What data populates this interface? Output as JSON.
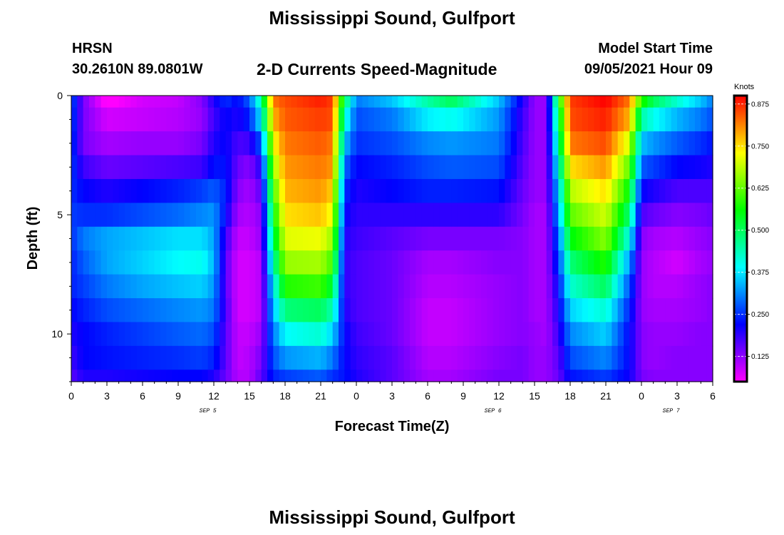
{
  "header": {
    "title": "Mississippi Sound, Gulfport",
    "footer_title": "Mississippi Sound, Gulfport",
    "station_id": "HRSN",
    "station_coords": "30.2610N  89.0801W",
    "product": "2-D Currents Speed-Magnitude",
    "model_start_label": "Model Start Time",
    "model_start_value": "09/05/2021 Hour 09"
  },
  "chart_data": {
    "type": "heatmap",
    "title": "2-D Currents Speed-Magnitude",
    "xlabel": "Forecast Time(Z)",
    "ylabel": "Depth (ft)",
    "x_hours": [
      0,
      54
    ],
    "xtick_hours": [
      0,
      3,
      6,
      9,
      12,
      15,
      18,
      21,
      24,
      27,
      30,
      33,
      36,
      39,
      42,
      45,
      48,
      51,
      54
    ],
    "xtick_labels": [
      "0",
      "3",
      "6",
      "9",
      "12",
      "15",
      "18",
      "21",
      "0",
      "3",
      "6",
      "9",
      "12",
      "15",
      "18",
      "21",
      "0",
      "3",
      "6"
    ],
    "date_labels": [
      {
        "hour": 11.5,
        "text": "SEP 5"
      },
      {
        "hour": 35.5,
        "text": "SEP 6"
      },
      {
        "hour": 50.5,
        "text": "SEP 7"
      }
    ],
    "ylim": [
      0,
      12
    ],
    "yticks": [
      0,
      5,
      10
    ],
    "ytick_labels": [
      "0",
      "5",
      "10"
    ],
    "depths": [
      0,
      1,
      2,
      3,
      4,
      5,
      6,
      7,
      8,
      9,
      10,
      11,
      12
    ],
    "colorbar": {
      "label": "Knots",
      "min": 0.05,
      "max": 0.9,
      "ticks": [
        0.125,
        0.25,
        0.375,
        0.5,
        0.625,
        0.75,
        0.875
      ],
      "tick_labels": [
        "0.125",
        "0.250",
        "0.375",
        "0.500",
        "0.625",
        "0.750",
        "0.875"
      ],
      "colors": [
        "#ff00ff",
        "#7f00ff",
        "#0000ff",
        "#0080ff",
        "#00ffff",
        "#00ff80",
        "#00ff00",
        "#80ff00",
        "#ffff00",
        "#ff8000",
        "#ff0000"
      ]
    },
    "profiles": [
      {
        "hour": 0,
        "values": [
          0.28,
          0.27,
          0.26,
          0.26,
          0.25,
          0.26,
          0.25,
          0.24,
          0.24,
          0.22,
          0.2,
          0.18,
          0.16
        ]
      },
      {
        "hour": 1,
        "values": [
          0.14,
          0.14,
          0.14,
          0.18,
          0.22,
          0.25,
          0.3,
          0.28,
          0.26,
          0.24,
          0.22,
          0.22,
          0.2
        ]
      },
      {
        "hour": 3,
        "values": [
          0.04,
          0.08,
          0.11,
          0.15,
          0.2,
          0.25,
          0.33,
          0.33,
          0.3,
          0.27,
          0.24,
          0.23,
          0.2
        ]
      },
      {
        "hour": 6,
        "values": [
          0.08,
          0.09,
          0.12,
          0.16,
          0.22,
          0.27,
          0.35,
          0.36,
          0.33,
          0.29,
          0.26,
          0.24,
          0.21
        ]
      },
      {
        "hour": 9,
        "values": [
          0.09,
          0.1,
          0.12,
          0.17,
          0.24,
          0.29,
          0.37,
          0.39,
          0.35,
          0.31,
          0.28,
          0.25,
          0.22
        ]
      },
      {
        "hour": 11,
        "values": [
          0.13,
          0.12,
          0.14,
          0.18,
          0.26,
          0.31,
          0.37,
          0.4,
          0.36,
          0.32,
          0.29,
          0.26,
          0.22
        ]
      },
      {
        "hour": 12,
        "values": [
          0.2,
          0.18,
          0.2,
          0.23,
          0.28,
          0.32,
          0.33,
          0.34,
          0.32,
          0.3,
          0.27,
          0.24,
          0.2
        ]
      },
      {
        "hour": 13,
        "values": [
          0.25,
          0.22,
          0.22,
          0.23,
          0.24,
          0.22,
          0.18,
          0.16,
          0.16,
          0.17,
          0.16,
          0.16,
          0.15
        ]
      },
      {
        "hour": 14,
        "values": [
          0.22,
          0.2,
          0.17,
          0.15,
          0.13,
          0.11,
          0.09,
          0.08,
          0.08,
          0.08,
          0.09,
          0.09,
          0.1
        ]
      },
      {
        "hour": 15,
        "values": [
          0.28,
          0.24,
          0.18,
          0.13,
          0.11,
          0.1,
          0.09,
          0.08,
          0.08,
          0.08,
          0.09,
          0.1,
          0.1
        ]
      },
      {
        "hour": 16,
        "values": [
          0.45,
          0.38,
          0.28,
          0.2,
          0.16,
          0.13,
          0.12,
          0.1,
          0.1,
          0.1,
          0.12,
          0.14,
          0.16
        ]
      },
      {
        "hour": 17,
        "values": [
          0.82,
          0.78,
          0.72,
          0.66,
          0.6,
          0.55,
          0.5,
          0.44,
          0.38,
          0.34,
          0.3,
          0.27,
          0.24
        ]
      },
      {
        "hour": 18,
        "values": [
          0.85,
          0.84,
          0.82,
          0.8,
          0.78,
          0.75,
          0.71,
          0.66,
          0.58,
          0.48,
          0.39,
          0.32,
          0.26
        ]
      },
      {
        "hour": 21,
        "values": [
          0.88,
          0.86,
          0.84,
          0.82,
          0.8,
          0.77,
          0.72,
          0.67,
          0.6,
          0.5,
          0.42,
          0.34,
          0.28
        ]
      },
      {
        "hour": 22,
        "values": [
          0.86,
          0.85,
          0.82,
          0.8,
          0.76,
          0.72,
          0.66,
          0.6,
          0.52,
          0.44,
          0.36,
          0.3,
          0.25
        ]
      },
      {
        "hour": 23,
        "values": [
          0.5,
          0.42,
          0.35,
          0.29,
          0.25,
          0.22,
          0.2,
          0.19,
          0.19,
          0.2,
          0.22,
          0.22,
          0.23
        ]
      },
      {
        "hour": 24,
        "values": [
          0.3,
          0.27,
          0.25,
          0.22,
          0.2,
          0.19,
          0.18,
          0.17,
          0.17,
          0.17,
          0.18,
          0.19,
          0.2
        ]
      },
      {
        "hour": 27,
        "values": [
          0.35,
          0.3,
          0.27,
          0.24,
          0.22,
          0.19,
          0.16,
          0.15,
          0.15,
          0.15,
          0.15,
          0.16,
          0.16
        ]
      },
      {
        "hour": 30,
        "values": [
          0.45,
          0.38,
          0.31,
          0.27,
          0.24,
          0.19,
          0.14,
          0.11,
          0.1,
          0.09,
          0.09,
          0.1,
          0.11
        ]
      },
      {
        "hour": 32,
        "values": [
          0.5,
          0.4,
          0.32,
          0.28,
          0.24,
          0.19,
          0.14,
          0.11,
          0.1,
          0.09,
          0.09,
          0.1,
          0.11
        ]
      },
      {
        "hour": 36,
        "values": [
          0.35,
          0.32,
          0.3,
          0.27,
          0.23,
          0.19,
          0.14,
          0.13,
          0.12,
          0.12,
          0.12,
          0.13,
          0.14
        ]
      },
      {
        "hour": 38,
        "values": [
          0.2,
          0.18,
          0.17,
          0.16,
          0.15,
          0.14,
          0.13,
          0.13,
          0.13,
          0.13,
          0.13,
          0.14,
          0.14
        ]
      },
      {
        "hour": 39,
        "values": [
          0.12,
          0.12,
          0.12,
          0.12,
          0.12,
          0.11,
          0.11,
          0.11,
          0.11,
          0.11,
          0.12,
          0.12,
          0.12
        ]
      },
      {
        "hour": 40,
        "values": [
          0.12,
          0.12,
          0.12,
          0.12,
          0.12,
          0.11,
          0.11,
          0.11,
          0.11,
          0.11,
          0.11,
          0.12,
          0.12
        ]
      },
      {
        "hour": 41,
        "values": [
          0.55,
          0.5,
          0.45,
          0.4,
          0.35,
          0.32,
          0.28,
          0.25,
          0.22,
          0.2,
          0.18,
          0.16,
          0.15
        ]
      },
      {
        "hour": 42,
        "values": [
          0.86,
          0.85,
          0.82,
          0.75,
          0.68,
          0.62,
          0.55,
          0.48,
          0.42,
          0.36,
          0.31,
          0.27,
          0.23
        ]
      },
      {
        "hour": 45,
        "values": [
          0.9,
          0.88,
          0.85,
          0.8,
          0.75,
          0.7,
          0.65,
          0.58,
          0.5,
          0.42,
          0.36,
          0.31,
          0.26
        ]
      },
      {
        "hour": 47,
        "values": [
          0.82,
          0.78,
          0.7,
          0.62,
          0.55,
          0.48,
          0.4,
          0.32,
          0.27,
          0.24,
          0.22,
          0.22,
          0.21
        ]
      },
      {
        "hour": 48,
        "values": [
          0.58,
          0.45,
          0.35,
          0.28,
          0.22,
          0.17,
          0.13,
          0.12,
          0.12,
          0.12,
          0.13,
          0.13,
          0.14
        ]
      },
      {
        "hour": 49,
        "values": [
          0.5,
          0.4,
          0.32,
          0.26,
          0.2,
          0.15,
          0.11,
          0.1,
          0.1,
          0.11,
          0.12,
          0.12,
          0.13
        ]
      },
      {
        "hour": 51,
        "values": [
          0.42,
          0.34,
          0.28,
          0.22,
          0.17,
          0.13,
          0.1,
          0.08,
          0.1,
          0.11,
          0.12,
          0.13,
          0.13
        ]
      },
      {
        "hour": 53,
        "values": [
          0.35,
          0.3,
          0.25,
          0.21,
          0.17,
          0.14,
          0.12,
          0.11,
          0.12,
          0.12,
          0.13,
          0.13,
          0.13
        ]
      },
      {
        "hour": 54,
        "values": [
          0.3,
          0.27,
          0.23,
          0.2,
          0.17,
          0.15,
          0.13,
          0.12,
          0.13,
          0.13,
          0.13,
          0.13,
          0.13
        ]
      }
    ]
  }
}
